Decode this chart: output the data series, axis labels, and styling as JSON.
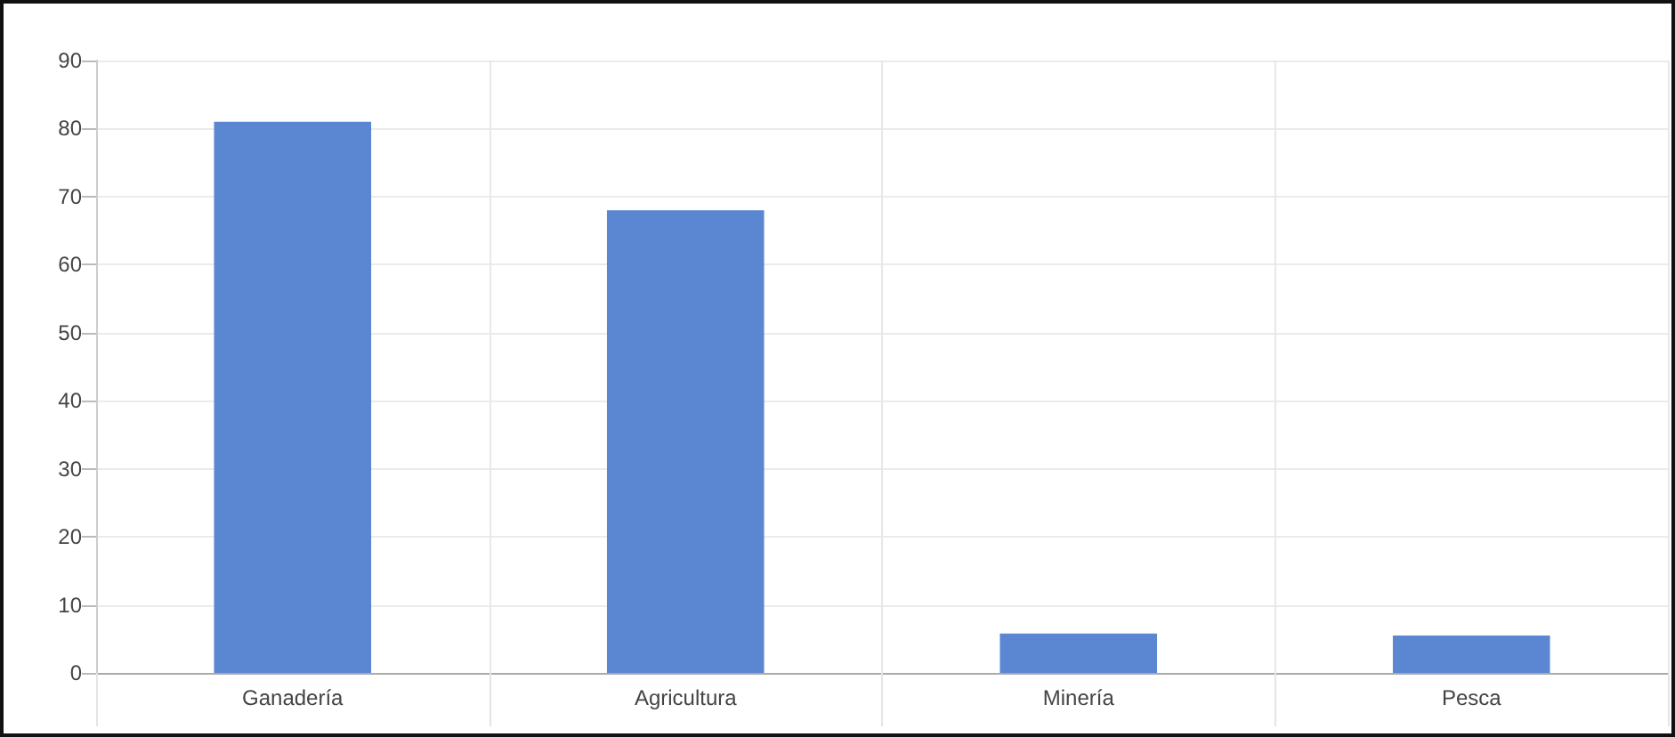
{
  "chart_data": {
    "type": "bar",
    "categories": [
      "Ganadería",
      "Agricultura",
      "Minería",
      "Pesca"
    ],
    "values": [
      81,
      68,
      5.8,
      5.5
    ],
    "color": "#5b87d2",
    "ylim": [
      0,
      90
    ],
    "yticks": [
      0,
      10,
      20,
      30,
      40,
      50,
      60,
      70,
      80,
      90
    ],
    "grid": true
  }
}
